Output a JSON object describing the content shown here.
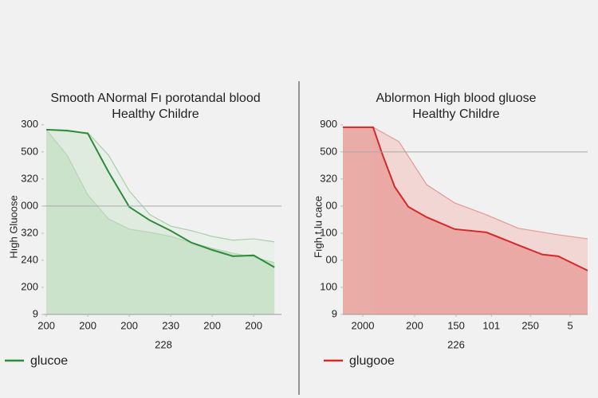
{
  "chart_data": [
    {
      "type": "line",
      "title": "Smooth ANormal Fı porotandal blood",
      "subtitle": "Healthy Childre",
      "y_label": "Hıgh Gluoose",
      "x_label": "228",
      "xlim": [
        -0.06,
        5.67
      ],
      "ylim": [
        0,
        7.2
      ],
      "xticks": [
        {
          "value": 0,
          "label": "200"
        },
        {
          "value": 1,
          "label": "200"
        },
        {
          "value": 2,
          "label": "200"
        },
        {
          "value": 3,
          "label": "230"
        },
        {
          "value": 4,
          "label": "200"
        },
        {
          "value": 5,
          "label": "200"
        }
      ],
      "yticks": [
        {
          "value": 0,
          "label": "9"
        },
        {
          "value": 1,
          "label": "200"
        },
        {
          "value": 2,
          "label": "240"
        },
        {
          "value": 3,
          "label": "320"
        },
        {
          "value": 4,
          "label": "000"
        },
        {
          "value": 5,
          "label": "320"
        },
        {
          "value": 6,
          "label": "500"
        },
        {
          "value": 7,
          "label": "300"
        }
      ],
      "reference_line": 4,
      "series": [
        {
          "name": "glucoe",
          "color": "#2e8b3a",
          "fill": "#dfeadf",
          "x": [
            0,
            0.5,
            1,
            1.5,
            2,
            2.5,
            3,
            3.5,
            4,
            4.5,
            5,
            5.5
          ],
          "values": [
            6.82,
            6.79,
            6.68,
            5.26,
            3.97,
            3.47,
            3.09,
            2.65,
            2.38,
            2.15,
            2.18,
            1.74
          ]
        },
        {
          "color": "#a9cfa9",
          "fill": "#e8efe8",
          "x": [
            0,
            0.5,
            1,
            1.5,
            2,
            2.5,
            3,
            3.5,
            4,
            4.5,
            5,
            5.5
          ],
          "values": [
            6.82,
            6.76,
            6.71,
            5.88,
            4.56,
            3.68,
            3.26,
            3.09,
            2.88,
            2.74,
            2.79,
            2.68
          ]
        },
        {
          "color": "#b5d6b5",
          "fill": "#c9e1c9",
          "x": [
            0,
            0.5,
            1,
            1.5,
            2,
            2.5,
            3,
            3.5,
            4,
            4.5,
            5,
            5.5
          ],
          "values": [
            6.82,
            5.88,
            4.41,
            3.53,
            3.15,
            3.03,
            2.88,
            2.65,
            2.44,
            2.26,
            2.12,
            1.91
          ]
        }
      ]
    },
    {
      "type": "line",
      "title": "Ablormon High blood gluose",
      "subtitle": "Healthy Childre",
      "y_label": "Fıgh t lu cace",
      "x_label": "226",
      "xlim": [
        -0.48,
        5.42
      ],
      "ylim": [
        0,
        7.2
      ],
      "xticks": [
        {
          "value": 0,
          "label": "2000"
        },
        {
          "value": 1.25,
          "label": "200"
        },
        {
          "value": 2.25,
          "label": "150"
        },
        {
          "value": 3.1,
          "label": "101"
        },
        {
          "value": 4.04,
          "label": "250"
        },
        5
      ],
      "yticks": [
        {
          "value": 0,
          "label": "9"
        },
        {
          "value": 1,
          "label": "100"
        },
        {
          "value": 2,
          "label": "00"
        },
        {
          "value": 3,
          "label": "100"
        },
        {
          "value": 4,
          "label": "00"
        },
        {
          "value": 5,
          "label": "320"
        },
        {
          "value": 6,
          "label": "500"
        },
        {
          "value": 7,
          "label": "900"
        }
      ],
      "reference_line": 6,
      "series": [
        {
          "name": "glugooe",
          "color": "#d42a2a",
          "fill": "#e9a49f",
          "x": [
            -0.48,
            0.25,
            0.48,
            0.77,
            1.1,
            1.54,
            2.21,
            2.98,
            3.75,
            4.33,
            4.71,
            5.42
          ],
          "values": [
            6.91,
            6.91,
            5.88,
            4.71,
            3.97,
            3.59,
            3.15,
            3.03,
            2.56,
            2.21,
            2.15,
            1.62
          ]
        },
        {
          "color": "#e39a95",
          "fill": "#f2d3d0",
          "x": [
            0.25,
            0.87,
            1.54,
            2.21,
            2.98,
            3.75,
            4.71,
            5.42
          ],
          "values": [
            6.91,
            6.38,
            4.79,
            4.12,
            3.68,
            3.18,
            2.94,
            2.79
          ]
        }
      ]
    }
  ]
}
